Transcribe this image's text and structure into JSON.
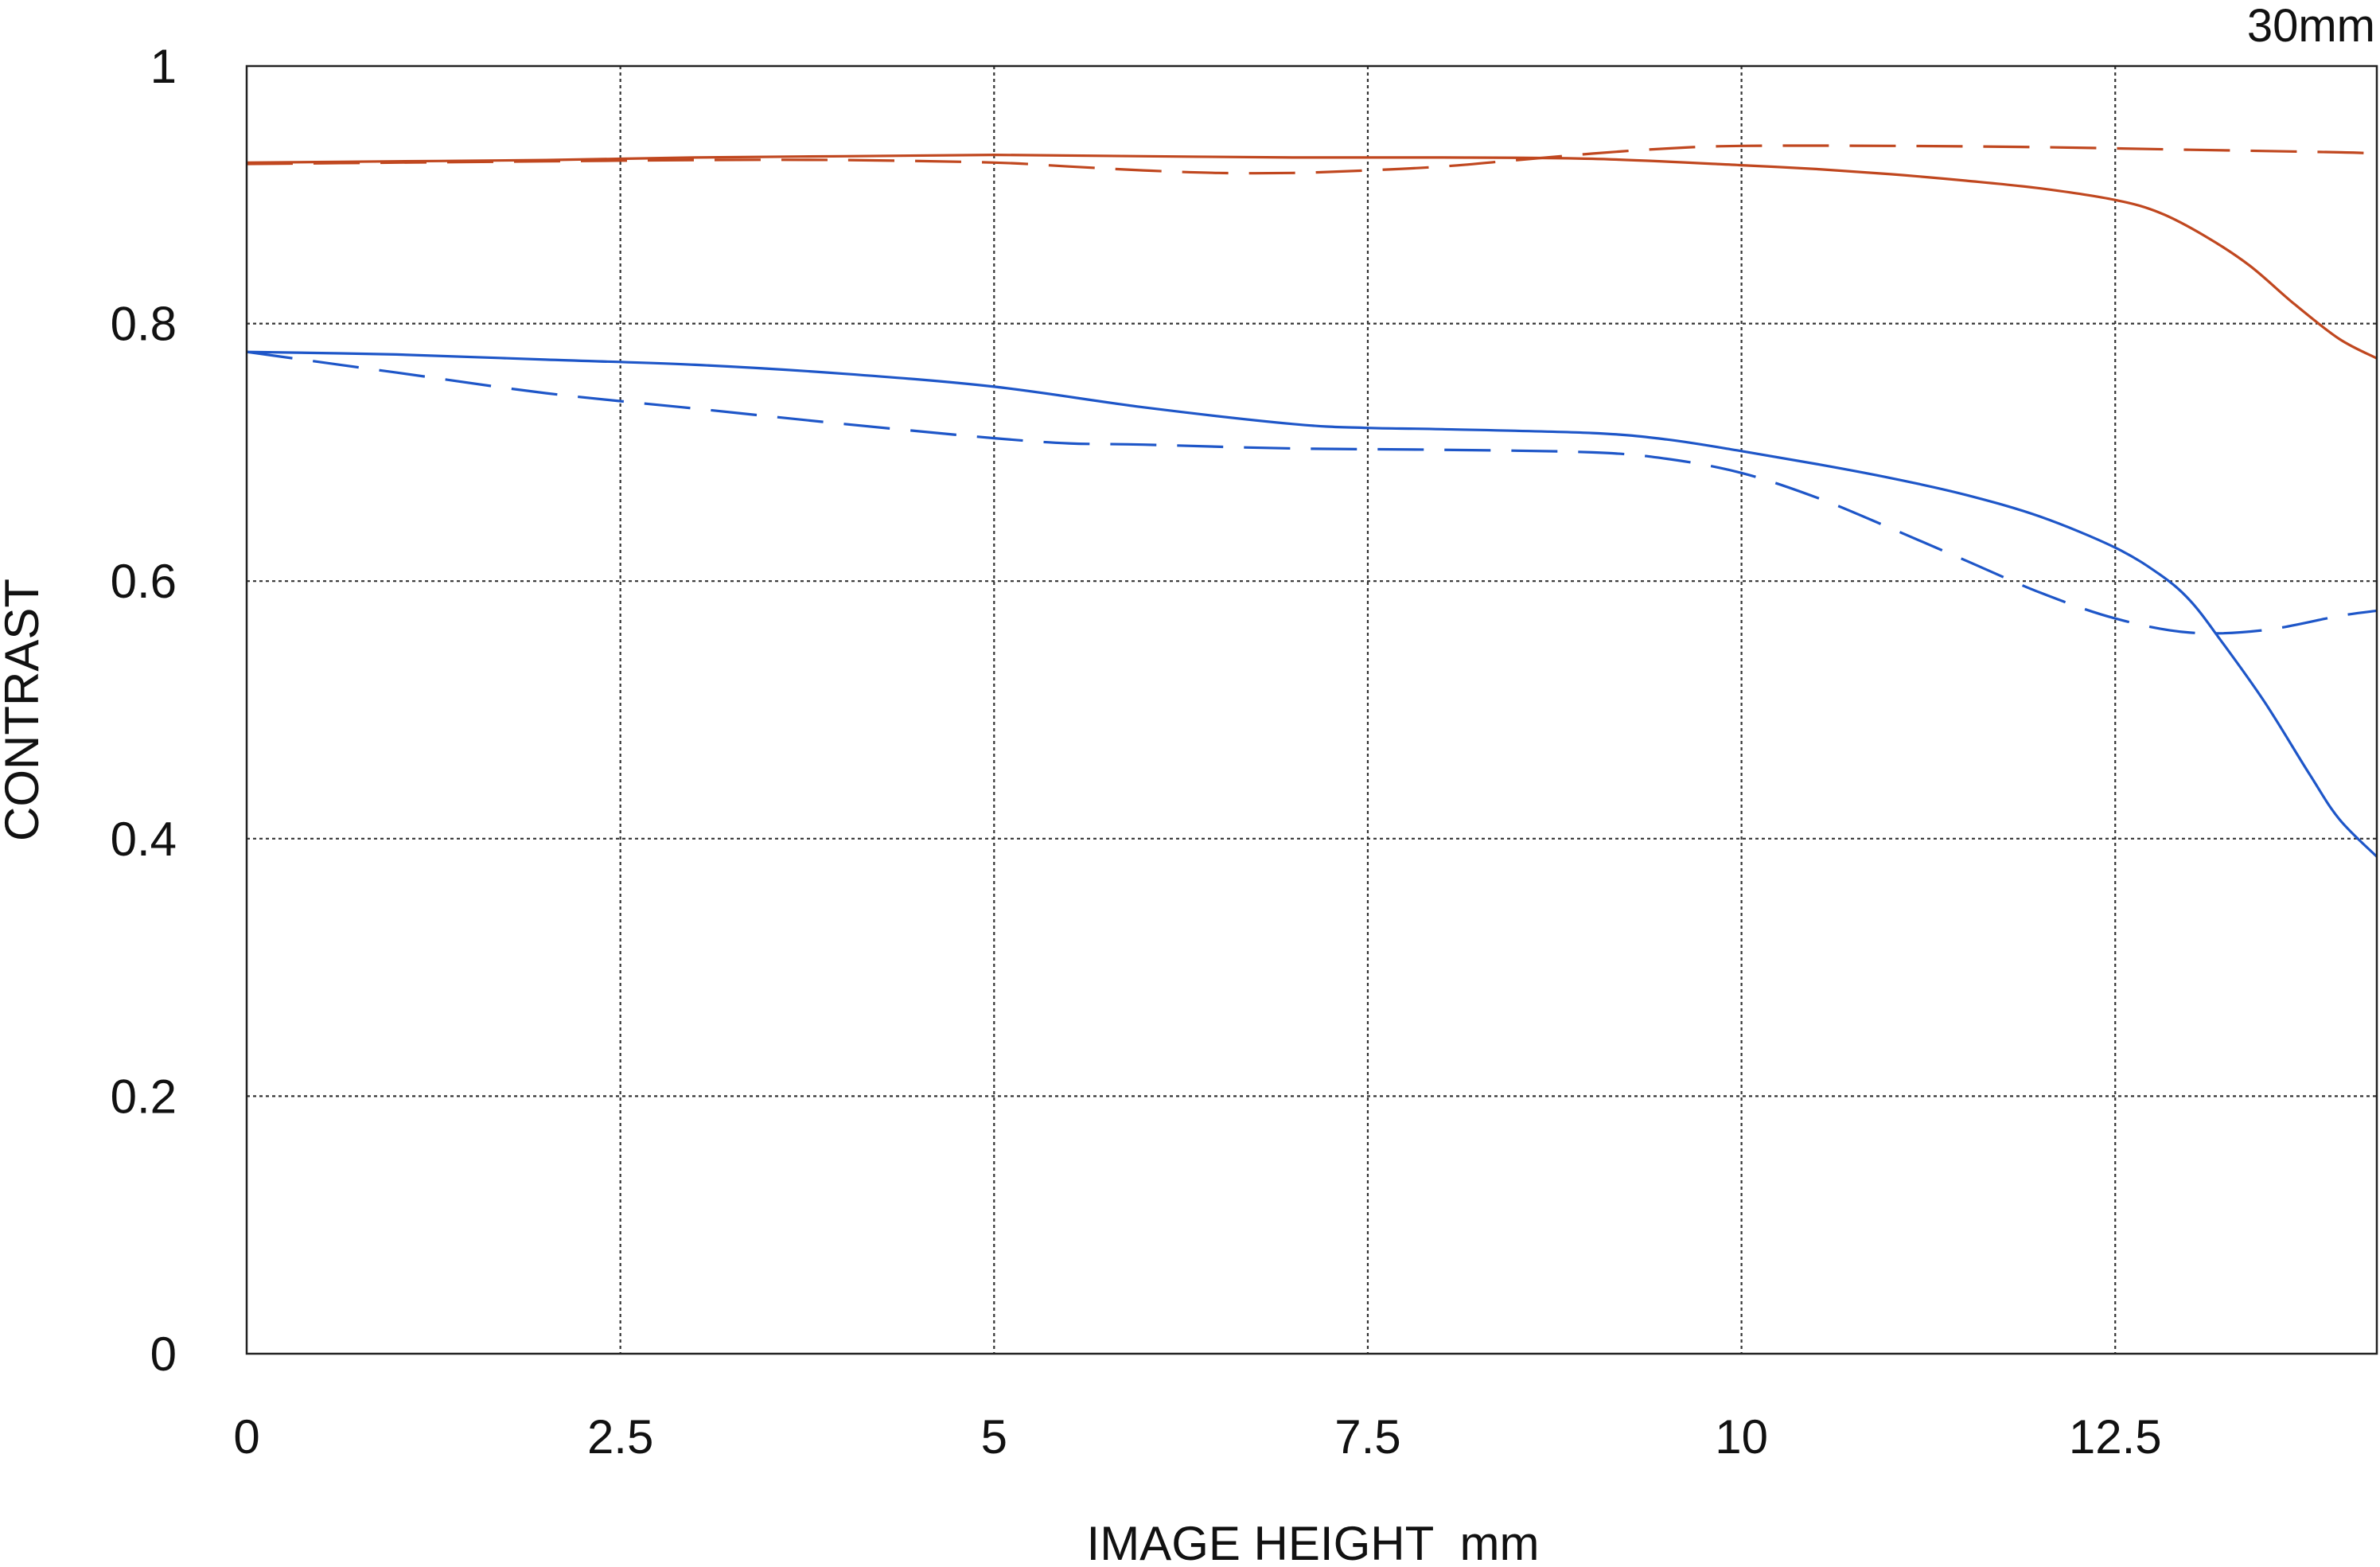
{
  "chart_data": {
    "type": "line",
    "corner_label": "30mm",
    "xlabel": "IMAGE HEIGHT  mm",
    "ylabel": "CONTRAST",
    "xlim": [
      0,
      14.25
    ],
    "ylim": [
      0,
      1
    ],
    "x_ticks": [
      0,
      2.5,
      5,
      7.5,
      10,
      12.5
    ],
    "x_tick_labels": [
      "0",
      "2.5",
      "5",
      "7.5",
      "10",
      "12.5"
    ],
    "y_ticks": [
      0,
      0.2,
      0.4,
      0.6,
      0.8,
      1
    ],
    "y_tick_labels": [
      "0",
      "0.2",
      "0.4",
      "0.6",
      "0.8",
      "1"
    ],
    "grid": "dotted",
    "legend": "none",
    "series": [
      {
        "color": "#c0471f",
        "style": "solid",
        "x": [
          0,
          1,
          2,
          3,
          4,
          5,
          6,
          7,
          8,
          9,
          10,
          10.5,
          11,
          11.5,
          12,
          12.5,
          12.8,
          13.1,
          13.4,
          13.7,
          14,
          14.25
        ],
        "y": [
          0.925,
          0.926,
          0.927,
          0.929,
          0.93,
          0.931,
          0.93,
          0.929,
          0.929,
          0.928,
          0.923,
          0.92,
          0.916,
          0.911,
          0.905,
          0.896,
          0.886,
          0.868,
          0.845,
          0.815,
          0.788,
          0.773
        ]
      },
      {
        "color": "#c0471f",
        "style": "dashed",
        "x": [
          0,
          1,
          2,
          3,
          4,
          5,
          5.5,
          6,
          6.5,
          7,
          7.5,
          8,
          8.5,
          9,
          9.5,
          10,
          11,
          12,
          13,
          14,
          14.25
        ],
        "y": [
          0.924,
          0.925,
          0.926,
          0.927,
          0.927,
          0.925,
          0.922,
          0.919,
          0.917,
          0.917,
          0.919,
          0.922,
          0.927,
          0.932,
          0.936,
          0.938,
          0.938,
          0.937,
          0.935,
          0.933,
          0.932
        ]
      },
      {
        "color": "#1e56c8",
        "style": "solid",
        "x": [
          0,
          1,
          2,
          3,
          4,
          5,
          6,
          7,
          7.5,
          8,
          9,
          9.5,
          10,
          10.5,
          11,
          11.5,
          12,
          12.5,
          12.8,
          13,
          13.2,
          13.5,
          13.8,
          14,
          14.25
        ],
        "y": [
          0.778,
          0.776,
          0.772,
          0.768,
          0.761,
          0.751,
          0.735,
          0.722,
          0.719,
          0.718,
          0.715,
          0.71,
          0.701,
          0.691,
          0.68,
          0.667,
          0.65,
          0.626,
          0.605,
          0.585,
          0.555,
          0.506,
          0.45,
          0.415,
          0.386
        ]
      },
      {
        "color": "#1e56c8",
        "style": "dashed",
        "x": [
          0,
          1,
          2,
          3,
          4,
          5,
          5.5,
          6,
          7,
          8,
          9,
          9.5,
          10,
          10.5,
          11,
          11.5,
          12,
          12.5,
          13,
          13.5,
          14,
          14.25
        ],
        "y": [
          0.778,
          0.762,
          0.746,
          0.734,
          0.722,
          0.711,
          0.707,
          0.706,
          0.703,
          0.702,
          0.7,
          0.695,
          0.684,
          0.665,
          0.641,
          0.616,
          0.591,
          0.571,
          0.56,
          0.562,
          0.573,
          0.577
        ]
      }
    ]
  }
}
